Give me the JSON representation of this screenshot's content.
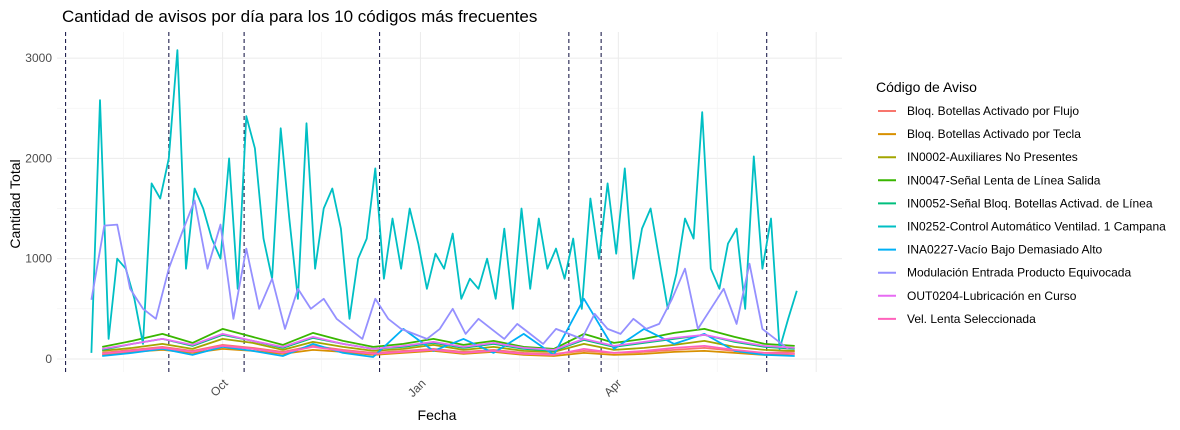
{
  "chart_data": {
    "type": "line",
    "title": "Cantidad de avisos por día para los 10 códigos más frecuentes",
    "xlabel": "Fecha",
    "ylabel": "Cantidad Total",
    "ylim": [
      -130,
      3260
    ],
    "xlim": [
      "2023-07-16",
      "2024-07-15"
    ],
    "x_ticks": [
      {
        "label": "Oct",
        "date": "2023-10-01"
      },
      {
        "label": "Jan",
        "date": "2024-01-01"
      },
      {
        "label": "Apr",
        "date": "2024-04-01"
      }
    ],
    "y_ticks": [
      {
        "label": "0",
        "value": 0
      },
      {
        "label": "1000",
        "value": 1000
      },
      {
        "label": "2000",
        "value": 2000
      },
      {
        "label": "3000",
        "value": 3000
      }
    ],
    "grid": true,
    "legend_position": "right",
    "legend_title": "Código de Aviso",
    "vertical_reference_lines": [
      "2023-07-20",
      "2023-09-06",
      "2023-10-11",
      "2023-12-13",
      "2024-03-10",
      "2024-03-25",
      "2024-06-10"
    ],
    "series": [
      {
        "name": "Bloq. Botellas Activado por Flujo",
        "color": "#F8766D",
        "x": [
          "2023-08-06",
          "2023-08-20",
          "2023-09-03",
          "2023-09-17",
          "2023-10-01",
          "2023-10-15",
          "2023-10-29",
          "2023-11-12",
          "2023-11-26",
          "2023-12-10",
          "2023-12-24",
          "2024-01-07",
          "2024-01-21",
          "2024-02-04",
          "2024-02-18",
          "2024-03-03",
          "2024-03-17",
          "2024-03-31",
          "2024-04-14",
          "2024-04-28",
          "2024-05-12",
          "2024-05-26",
          "2024-06-09",
          "2024-06-23"
        ],
        "values": [
          60,
          90,
          120,
          80,
          140,
          110,
          70,
          130,
          90,
          60,
          80,
          100,
          70,
          90,
          60,
          50,
          80,
          60,
          70,
          90,
          110,
          80,
          60,
          70
        ]
      },
      {
        "name": "Bloq. Botellas Activado por Tecla",
        "color": "#D89000",
        "x": [
          "2023-08-06",
          "2023-08-20",
          "2023-09-03",
          "2023-09-17",
          "2023-10-01",
          "2023-10-15",
          "2023-10-29",
          "2023-11-12",
          "2023-11-26",
          "2023-12-10",
          "2023-12-24",
          "2024-01-07",
          "2024-01-21",
          "2024-02-04",
          "2024-02-18",
          "2024-03-03",
          "2024-03-17",
          "2024-03-31",
          "2024-04-14",
          "2024-04-28",
          "2024-05-12",
          "2024-05-26",
          "2024-06-09",
          "2024-06-23"
        ],
        "values": [
          40,
          70,
          90,
          60,
          100,
          80,
          50,
          90,
          70,
          40,
          60,
          80,
          50,
          70,
          40,
          30,
          60,
          40,
          50,
          70,
          80,
          60,
          40,
          50
        ]
      },
      {
        "name": "IN0002-Auxiliares No Presentes",
        "color": "#A3A500",
        "x": [
          "2023-08-06",
          "2023-08-20",
          "2023-09-03",
          "2023-09-17",
          "2023-10-01",
          "2023-10-15",
          "2023-10-29",
          "2023-11-12",
          "2023-11-26",
          "2023-12-10",
          "2023-12-24",
          "2024-01-07",
          "2024-01-21",
          "2024-02-04",
          "2024-02-18",
          "2024-03-03",
          "2024-03-17",
          "2024-03-31",
          "2024-04-14",
          "2024-04-28",
          "2024-05-12",
          "2024-05-26",
          "2024-06-09",
          "2024-06-23"
        ],
        "values": [
          80,
          110,
          150,
          100,
          200,
          160,
          90,
          170,
          120,
          80,
          100,
          140,
          90,
          120,
          80,
          70,
          150,
          90,
          110,
          140,
          180,
          120,
          90,
          80
        ]
      },
      {
        "name": "IN0047-Señal Lenta de Línea Salida",
        "color": "#39B600",
        "x": [
          "2023-08-06",
          "2023-08-20",
          "2023-09-03",
          "2023-09-17",
          "2023-10-01",
          "2023-10-15",
          "2023-10-29",
          "2023-11-12",
          "2023-11-26",
          "2023-12-10",
          "2023-12-24",
          "2024-01-07",
          "2024-01-21",
          "2024-02-04",
          "2024-02-18",
          "2024-03-03",
          "2024-03-17",
          "2024-03-31",
          "2024-04-14",
          "2024-04-28",
          "2024-05-12",
          "2024-05-26",
          "2024-06-09",
          "2024-06-23"
        ],
        "values": [
          120,
          180,
          250,
          160,
          300,
          220,
          140,
          260,
          180,
          120,
          150,
          200,
          140,
          180,
          120,
          100,
          250,
          160,
          200,
          260,
          300,
          220,
          150,
          130
        ]
      },
      {
        "name": "IN0052-Señal Bloq. Botellas Activad. de Línea",
        "color": "#00BF7D",
        "x": [
          "2023-08-06",
          "2023-08-20",
          "2023-09-03",
          "2023-09-17",
          "2023-10-01",
          "2023-10-15",
          "2023-10-29",
          "2023-11-12",
          "2023-11-26",
          "2023-12-10",
          "2023-12-24",
          "2024-01-07",
          "2024-01-21",
          "2024-02-04",
          "2024-02-18",
          "2024-03-03",
          "2024-03-17",
          "2024-03-31",
          "2024-04-14",
          "2024-04-28",
          "2024-05-12",
          "2024-05-26",
          "2024-06-09",
          "2024-06-23"
        ],
        "values": [
          90,
          150,
          200,
          130,
          240,
          180,
          110,
          210,
          150,
          100,
          120,
          160,
          110,
          150,
          100,
          80,
          190,
          120,
          160,
          200,
          240,
          170,
          120,
          100
        ]
      },
      {
        "name": "IN0252-Control Automático Ventilad. 1 Campana",
        "color": "#00BFC4",
        "x": [
          "2023-08-01",
          "2023-08-05",
          "2023-08-09",
          "2023-08-13",
          "2023-08-17",
          "2023-08-21",
          "2023-08-25",
          "2023-08-29",
          "2023-09-02",
          "2023-09-06",
          "2023-09-10",
          "2023-09-14",
          "2023-09-18",
          "2023-09-22",
          "2023-09-26",
          "2023-09-30",
          "2023-10-04",
          "2023-10-08",
          "2023-10-12",
          "2023-10-16",
          "2023-10-20",
          "2023-10-24",
          "2023-10-28",
          "2023-11-01",
          "2023-11-05",
          "2023-11-09",
          "2023-11-13",
          "2023-11-17",
          "2023-11-21",
          "2023-11-25",
          "2023-11-29",
          "2023-12-03",
          "2023-12-07",
          "2023-12-11",
          "2023-12-15",
          "2023-12-19",
          "2023-12-23",
          "2023-12-27",
          "2023-12-31",
          "2024-01-04",
          "2024-01-08",
          "2024-01-12",
          "2024-01-16",
          "2024-01-20",
          "2024-01-24",
          "2024-01-28",
          "2024-02-01",
          "2024-02-05",
          "2024-02-09",
          "2024-02-13",
          "2024-02-17",
          "2024-02-21",
          "2024-02-25",
          "2024-02-29",
          "2024-03-04",
          "2024-03-08",
          "2024-03-12",
          "2024-03-16",
          "2024-03-20",
          "2024-03-24",
          "2024-03-28",
          "2024-04-01",
          "2024-04-05",
          "2024-04-09",
          "2024-04-13",
          "2024-04-17",
          "2024-04-21",
          "2024-04-25",
          "2024-04-29",
          "2024-05-03",
          "2024-05-07",
          "2024-05-11",
          "2024-05-15",
          "2024-05-19",
          "2024-05-23",
          "2024-05-27",
          "2024-05-31",
          "2024-06-04",
          "2024-06-08",
          "2024-06-12",
          "2024-06-16",
          "2024-06-20",
          "2024-06-24"
        ],
        "values": [
          60,
          2580,
          200,
          1000,
          900,
          600,
          150,
          1750,
          1600,
          2000,
          3080,
          900,
          1700,
          1500,
          1200,
          1000,
          2000,
          700,
          2420,
          2100,
          1200,
          800,
          2300,
          1400,
          600,
          2350,
          900,
          1500,
          1700,
          1300,
          400,
          1000,
          1200,
          1900,
          800,
          1400,
          900,
          1500,
          1150,
          700,
          1050,
          900,
          1250,
          600,
          800,
          700,
          1000,
          600,
          1300,
          500,
          1500,
          700,
          1400,
          900,
          1100,
          800,
          1200,
          500,
          1600,
          1000,
          1750,
          1050,
          1900,
          800,
          1300,
          1500,
          1000,
          500,
          850,
          1400,
          1200,
          2460,
          900,
          700,
          1150,
          1300,
          500,
          2020,
          900,
          1400,
          100,
          400,
          680
        ]
      },
      {
        "name": "INA0227-Vacío Bajo Demasiado Alto",
        "color": "#00B0F6",
        "x": [
          "2023-08-06",
          "2023-08-20",
          "2023-09-03",
          "2023-09-17",
          "2023-10-01",
          "2023-10-15",
          "2023-10-29",
          "2023-11-12",
          "2023-11-26",
          "2023-12-10",
          "2023-12-24",
          "2024-01-07",
          "2024-01-21",
          "2024-02-04",
          "2024-02-18",
          "2024-03-03",
          "2024-03-17",
          "2024-03-31",
          "2024-04-14",
          "2024-04-28",
          "2024-05-12",
          "2024-05-26",
          "2024-06-09",
          "2024-06-23"
        ],
        "values": [
          30,
          60,
          100,
          40,
          120,
          80,
          30,
          150,
          60,
          20,
          300,
          80,
          200,
          60,
          250,
          40,
          600,
          100,
          300,
          150,
          250,
          80,
          40,
          30
        ]
      },
      {
        "name": "Modulación Entrada Producto Equivocada",
        "color": "#9590FF",
        "x": [
          "2023-08-01",
          "2023-08-07",
          "2023-08-13",
          "2023-08-19",
          "2023-08-25",
          "2023-08-31",
          "2023-09-06",
          "2023-09-12",
          "2023-09-18",
          "2023-09-24",
          "2023-09-30",
          "2023-10-06",
          "2023-10-12",
          "2023-10-18",
          "2023-10-24",
          "2023-10-30",
          "2023-11-05",
          "2023-11-11",
          "2023-11-17",
          "2023-11-23",
          "2023-11-29",
          "2023-12-05",
          "2023-12-11",
          "2023-12-17",
          "2023-12-23",
          "2023-12-29",
          "2024-01-04",
          "2024-01-10",
          "2024-01-16",
          "2024-01-22",
          "2024-01-28",
          "2024-02-03",
          "2024-02-09",
          "2024-02-15",
          "2024-02-21",
          "2024-02-27",
          "2024-03-04",
          "2024-03-10",
          "2024-03-16",
          "2024-03-22",
          "2024-03-28",
          "2024-04-03",
          "2024-04-09",
          "2024-04-15",
          "2024-04-21",
          "2024-04-27",
          "2024-05-03",
          "2024-05-09",
          "2024-05-15",
          "2024-05-21",
          "2024-05-27",
          "2024-06-02",
          "2024-06-08",
          "2024-06-14",
          "2024-06-20"
        ],
        "values": [
          590,
          1330,
          1340,
          700,
          500,
          400,
          900,
          1250,
          1580,
          900,
          1340,
          400,
          1100,
          500,
          800,
          300,
          700,
          500,
          600,
          400,
          300,
          200,
          600,
          400,
          300,
          250,
          200,
          300,
          500,
          250,
          400,
          300,
          200,
          350,
          250,
          150,
          300,
          250,
          200,
          450,
          300,
          250,
          400,
          300,
          350,
          600,
          900,
          300,
          500,
          700,
          350,
          950,
          300,
          200,
          100
        ]
      },
      {
        "name": "OUT0204-Lubricación en Curso",
        "color": "#E76BF3",
        "x": [
          "2023-08-06",
          "2023-08-20",
          "2023-09-03",
          "2023-09-17",
          "2023-10-01",
          "2023-10-15",
          "2023-10-29",
          "2023-11-12",
          "2023-11-26",
          "2023-12-10",
          "2023-12-24",
          "2024-01-07",
          "2024-01-21",
          "2024-02-04",
          "2024-02-18",
          "2024-03-03",
          "2024-03-17",
          "2024-03-31",
          "2024-04-14",
          "2024-04-28",
          "2024-05-12",
          "2024-05-26",
          "2024-06-09",
          "2024-06-23"
        ],
        "values": [
          100,
          150,
          200,
          140,
          250,
          180,
          120,
          220,
          150,
          100,
          130,
          170,
          120,
          160,
          110,
          90,
          200,
          130,
          170,
          210,
          240,
          180,
          130,
          110
        ]
      },
      {
        "name": "Vel. Lenta Seleccionada",
        "color": "#FF62BC",
        "x": [
          "2023-08-06",
          "2023-08-20",
          "2023-09-03",
          "2023-09-17",
          "2023-10-01",
          "2023-10-15",
          "2023-10-29",
          "2023-11-12",
          "2023-11-26",
          "2023-12-10",
          "2023-12-24",
          "2024-01-07",
          "2024-01-21",
          "2024-02-04",
          "2024-02-18",
          "2024-03-03",
          "2024-03-17",
          "2024-03-31",
          "2024-04-14",
          "2024-04-28",
          "2024-05-12",
          "2024-05-26",
          "2024-06-09",
          "2024-06-23"
        ],
        "values": [
          50,
          80,
          110,
          70,
          130,
          100,
          60,
          120,
          80,
          50,
          70,
          90,
          60,
          80,
          50,
          40,
          100,
          60,
          80,
          110,
          130,
          90,
          60,
          50
        ]
      }
    ]
  }
}
